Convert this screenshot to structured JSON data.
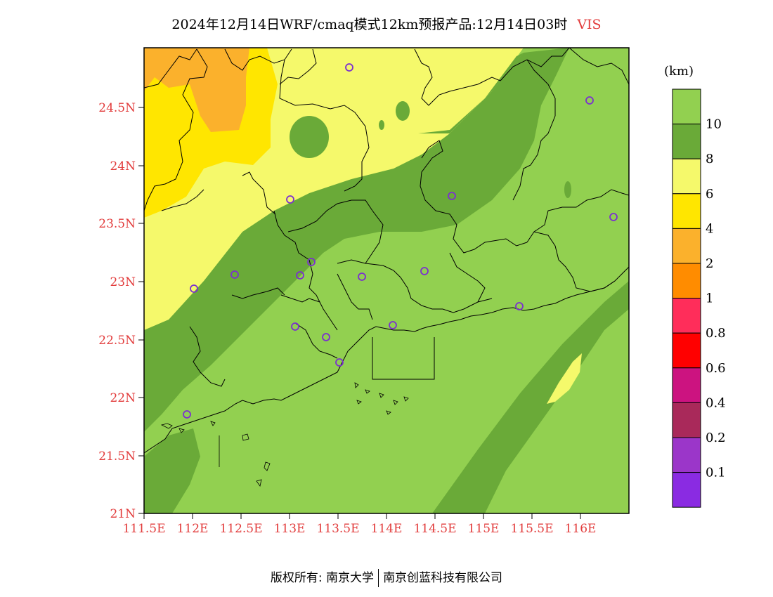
{
  "title": {
    "main": "2024年12月14日WRF/cmaq模式12km预报产品:12月14日03时",
    "variable": "VIS"
  },
  "axes": {
    "y_ticks": [
      "24.5N",
      "24N",
      "23.5N",
      "23N",
      "22.5N",
      "22N",
      "21.5N",
      "21N"
    ],
    "x_ticks": [
      "111.5E",
      "112E",
      "112.5E",
      "113E",
      "113.5E",
      "114E",
      "114.5E",
      "115E",
      "115.5E",
      "116E"
    ]
  },
  "legend": {
    "unit": "(km)",
    "labels": [
      "10",
      "8",
      "6",
      "4",
      "2",
      "1",
      "0.8",
      "0.6",
      "0.4",
      "0.2",
      "0.1"
    ],
    "colors": [
      "#92d050",
      "#6aaa38",
      "#f5f96b",
      "#ffe600",
      "#fbb12c",
      "#ff8c00",
      "#ff2d5a",
      "#ff0000",
      "#cc1380",
      "#a9295a",
      "#9b36c9",
      "#8a2be2"
    ]
  },
  "footer": {
    "left": "版权所有: 南京大学",
    "right": "南京创蓝科技有限公司"
  }
}
